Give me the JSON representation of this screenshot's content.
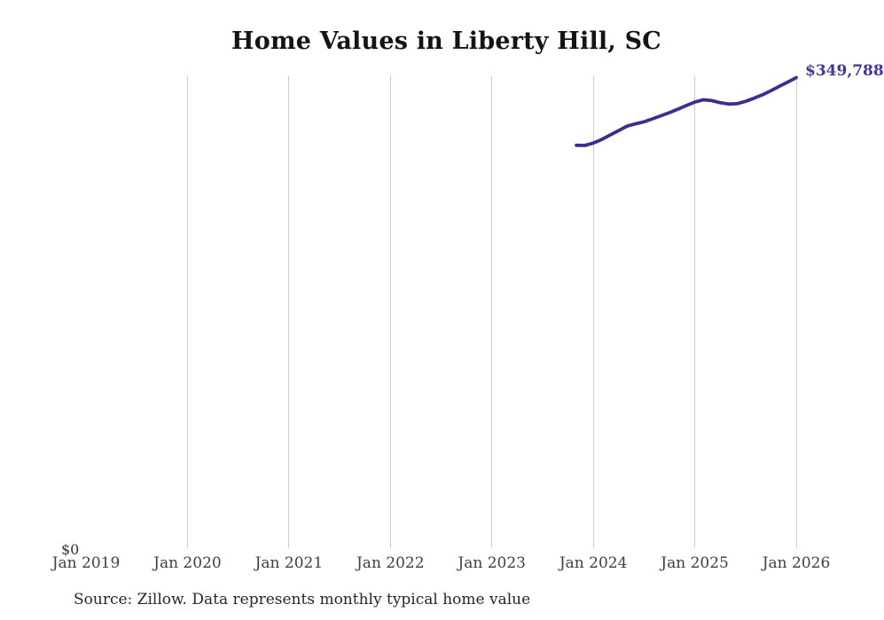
{
  "page": {
    "title": "Home Values in Liberty Hill, SC",
    "source_note": "Source: Zillow. Data represents monthly typical home value"
  },
  "chart_data": {
    "type": "line",
    "title": "Home Values in Liberty Hill, SC",
    "xlabel": "",
    "ylabel": "",
    "grid": "vertical-gridlines-only",
    "legend": "none",
    "y_axis": {
      "min": 0,
      "min_label": "$0",
      "implied_max": 360000
    },
    "x_tick_labels": [
      "Jan 2019",
      "Jan 2020",
      "Jan 2021",
      "Jan 2022",
      "Jan 2023",
      "Jan 2024",
      "Jan 2025",
      "Jan 2026"
    ],
    "end_label": "$349,788",
    "line_color": "#37308f",
    "label_color": "#3f3899",
    "gridline_color": "#cccccc",
    "series": [
      {
        "name": "Monthly typical home value",
        "points": [
          {
            "date": "2023-11",
            "value": 299400
          },
          {
            "date": "2023-12",
            "value": 299300
          },
          {
            "date": "2024-01",
            "value": 301100
          },
          {
            "date": "2024-02",
            "value": 303800
          },
          {
            "date": "2024-03",
            "value": 307100
          },
          {
            "date": "2024-04",
            "value": 310400
          },
          {
            "date": "2024-05",
            "value": 313700
          },
          {
            "date": "2024-06",
            "value": 315400
          },
          {
            "date": "2024-07",
            "value": 316900
          },
          {
            "date": "2024-08",
            "value": 319100
          },
          {
            "date": "2024-09",
            "value": 321400
          },
          {
            "date": "2024-10",
            "value": 323700
          },
          {
            "date": "2024-11",
            "value": 326300
          },
          {
            "date": "2024-12",
            "value": 329000
          },
          {
            "date": "2025-01",
            "value": 331600
          },
          {
            "date": "2025-02",
            "value": 333300
          },
          {
            "date": "2025-03",
            "value": 332700
          },
          {
            "date": "2025-04",
            "value": 331100
          },
          {
            "date": "2025-05",
            "value": 330100
          },
          {
            "date": "2025-06",
            "value": 330400
          },
          {
            "date": "2025-07",
            "value": 332100
          },
          {
            "date": "2025-08",
            "value": 334400
          },
          {
            "date": "2025-09",
            "value": 337000
          },
          {
            "date": "2025-10",
            "value": 340000
          },
          {
            "date": "2025-11",
            "value": 343300
          },
          {
            "date": "2025-12",
            "value": 346500
          },
          {
            "date": "2026-01",
            "value": 349788
          }
        ]
      }
    ],
    "source_note": "Source: Zillow. Data represents monthly typical home value"
  }
}
